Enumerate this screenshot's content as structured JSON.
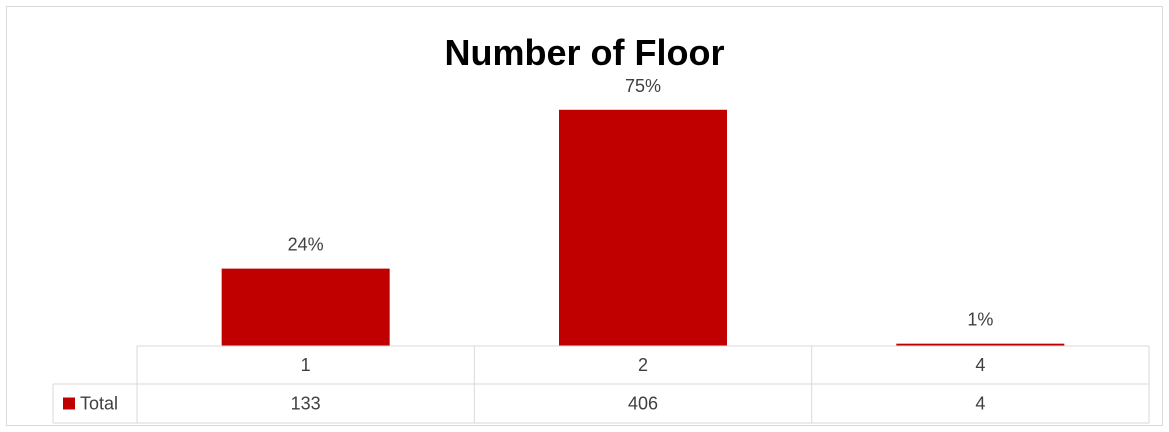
{
  "chart_data": {
    "type": "bar",
    "title": "Number of Floor",
    "categories": [
      "1",
      "2",
      "4"
    ],
    "series": [
      {
        "name": "Total",
        "values": [
          133,
          406,
          4
        ],
        "data_labels": [
          "24%",
          "75%",
          "1%"
        ],
        "color": "#c00000"
      }
    ],
    "ylim": [
      0,
      440
    ],
    "legend": "data-table"
  }
}
